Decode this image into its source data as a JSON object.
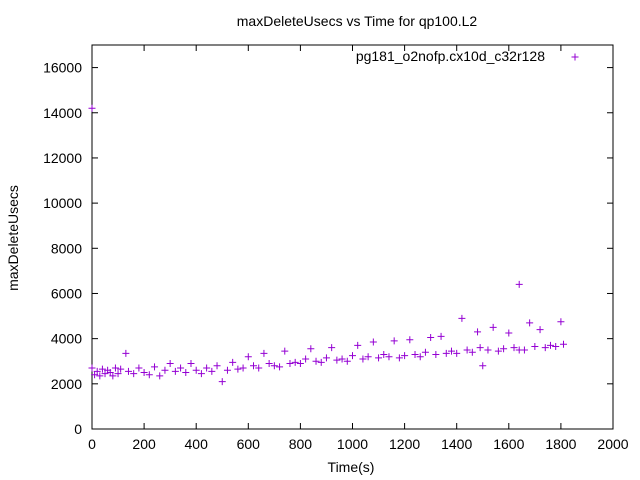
{
  "chart_data": {
    "type": "scatter",
    "title": "maxDeleteUsecs vs Time for qp100.L2",
    "xlabel": "Time(s)",
    "ylabel": "maxDeleteUsecs",
    "xlim": [
      0,
      2000
    ],
    "ylim": [
      0,
      17000
    ],
    "xticks": [
      "0",
      "200",
      "400",
      "600",
      "800",
      "1000",
      "1200",
      "1400",
      "1600",
      "1800",
      "2000"
    ],
    "yticks": [
      "0",
      "2000",
      "4000",
      "6000",
      "8000",
      "10000",
      "12000",
      "14000",
      "16000"
    ],
    "grid": false,
    "legend_position": "top-right",
    "series": [
      {
        "name": "pg181_o2nofp.cx10d_c32r128",
        "color": "#9400d3",
        "marker": "plus",
        "x": [
          0,
          0,
          10,
          20,
          30,
          40,
          50,
          60,
          70,
          80,
          90,
          100,
          110,
          130,
          140,
          160,
          180,
          200,
          220,
          240,
          260,
          280,
          300,
          320,
          340,
          360,
          380,
          400,
          420,
          440,
          460,
          480,
          500,
          520,
          540,
          560,
          580,
          600,
          620,
          640,
          660,
          680,
          700,
          720,
          740,
          760,
          780,
          800,
          820,
          840,
          860,
          880,
          900,
          920,
          940,
          960,
          980,
          1000,
          1020,
          1040,
          1060,
          1080,
          1100,
          1120,
          1140,
          1160,
          1180,
          1200,
          1220,
          1240,
          1260,
          1280,
          1300,
          1320,
          1340,
          1360,
          1380,
          1400,
          1420,
          1440,
          1460,
          1480,
          1500,
          1520,
          1540,
          1560,
          1580,
          1600,
          1620,
          1640,
          1660,
          1680,
          1700,
          1720,
          1740,
          1760,
          1780,
          1800,
          1810,
          1490,
          1640
        ],
        "y": [
          14200,
          2700,
          2400,
          2550,
          2350,
          2650,
          2450,
          2600,
          2500,
          2350,
          2700,
          2450,
          2650,
          3350,
          2550,
          2450,
          2700,
          2500,
          2400,
          2750,
          2350,
          2600,
          2900,
          2550,
          2700,
          2500,
          2900,
          2600,
          2450,
          2700,
          2550,
          2800,
          2100,
          2600,
          2950,
          2650,
          2700,
          3200,
          2800,
          2700,
          3350,
          2900,
          2800,
          2750,
          3450,
          2900,
          2950,
          2900,
          3100,
          3550,
          3000,
          2950,
          3150,
          3600,
          3050,
          3100,
          3000,
          3250,
          3700,
          3100,
          3200,
          3850,
          3150,
          3300,
          3200,
          3900,
          3150,
          3250,
          3950,
          3300,
          3200,
          3400,
          4050,
          3300,
          4100,
          3350,
          3450,
          3350,
          4900,
          3500,
          3400,
          4300,
          2800,
          3500,
          4500,
          3450,
          3550,
          4250,
          3600,
          6400,
          3500,
          4700,
          3650,
          4400,
          3600,
          3700,
          3650,
          4750,
          3750,
          3600,
          3500
        ]
      }
    ]
  }
}
